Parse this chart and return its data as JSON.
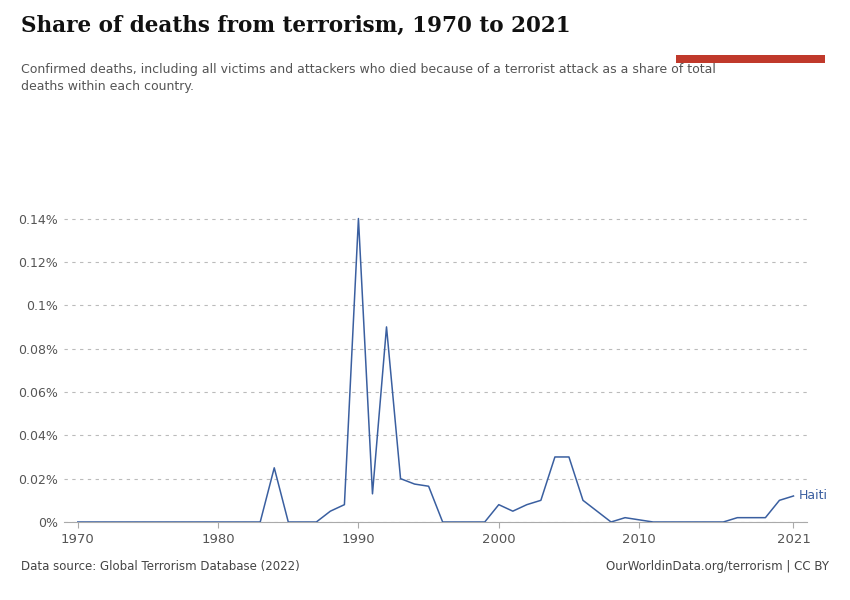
{
  "title": "Share of deaths from terrorism, 1970 to 2021",
  "subtitle": "Confirmed deaths, including all victims and attackers who died because of a terrorist attack as a share of total\ndeaths within each country.",
  "data_source": "Data source: Global Terrorism Database (2022)",
  "url": "OurWorldinData.org/terrorism | CC BY",
  "country_label": "Haiti",
  "line_color": "#3a5fa0",
  "background_color": "#ffffff",
  "years": [
    1970,
    1971,
    1972,
    1973,
    1974,
    1975,
    1976,
    1977,
    1978,
    1979,
    1980,
    1981,
    1982,
    1983,
    1984,
    1985,
    1986,
    1987,
    1988,
    1989,
    1990,
    1991,
    1992,
    1993,
    1994,
    1995,
    1996,
    1997,
    1998,
    1999,
    2000,
    2001,
    2002,
    2003,
    2004,
    2005,
    2006,
    2007,
    2008,
    2009,
    2010,
    2011,
    2012,
    2013,
    2014,
    2015,
    2016,
    2017,
    2018,
    2019,
    2020,
    2021
  ],
  "values": [
    0.0,
    0.0,
    0.0,
    0.0,
    0.0,
    0.0,
    0.0,
    0.0,
    0.0,
    0.0,
    0.0,
    0.0,
    0.0,
    0.0,
    0.00025,
    0.0,
    0.0,
    0.0,
    5e-05,
    8e-05,
    0.0014,
    0.00013,
    0.0009,
    0.0002,
    0.000175,
    0.000165,
    0.0,
    0.0,
    0.0,
    0.0,
    8e-05,
    5e-05,
    8e-05,
    0.0001,
    0.0003,
    0.0003,
    0.0001,
    5e-05,
    0.0,
    2e-05,
    1e-05,
    0.0,
    0.0,
    0.0,
    0.0,
    0.0,
    0.0,
    2e-05,
    2e-05,
    2e-05,
    0.0001,
    0.00012
  ],
  "ylim": [
    0,
    0.00155
  ],
  "yticks": [
    0.0,
    0.0002,
    0.0004,
    0.0006,
    0.0008,
    0.001,
    0.0012,
    0.0014
  ],
  "ytick_labels": [
    "0%",
    "0.02%",
    "0.04%",
    "0.06%",
    "0.08%",
    "0.1%",
    "0.12%",
    "0.14%"
  ],
  "xticks": [
    1970,
    1980,
    1990,
    2000,
    2010,
    2021
  ],
  "owid_box_color": "#1a3557",
  "owid_red": "#c0392b"
}
